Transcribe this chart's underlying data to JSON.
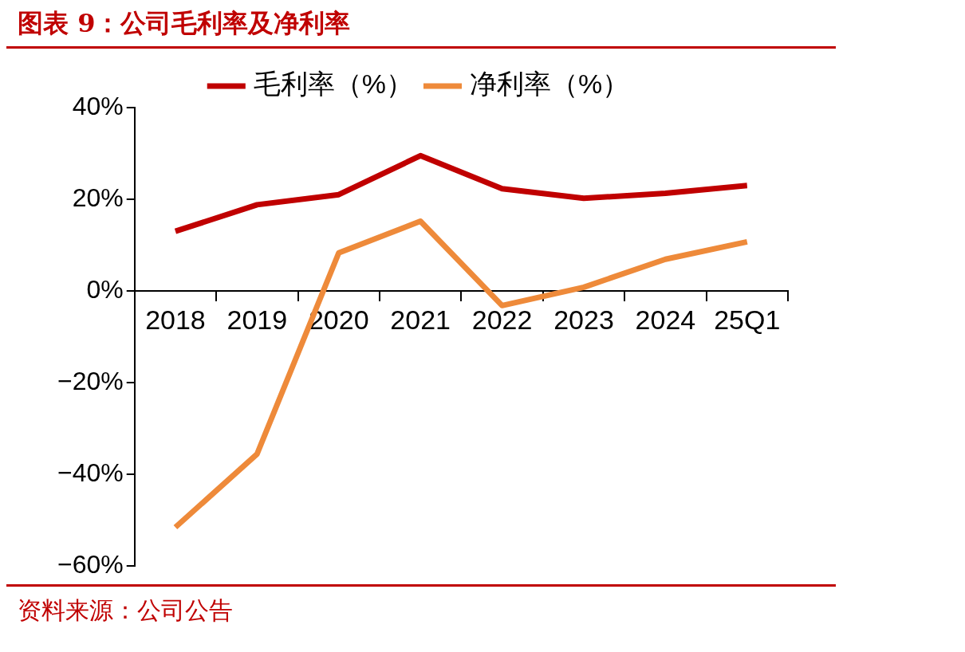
{
  "chart_data": {
    "type": "line",
    "title": "图表 9：公司毛利率及净利率",
    "categories": [
      "2018",
      "2019",
      "2020",
      "2021",
      "2022",
      "2023",
      "2024",
      "25Q1"
    ],
    "series": [
      {
        "name": "毛利率（%）",
        "color": "#c00000",
        "values": [
          13,
          18.8,
          21,
          29.5,
          22.3,
          20.2,
          21.3,
          23
        ]
      },
      {
        "name": "净利率（%）",
        "color": "#ee8a3a",
        "values": [
          -51.6,
          -35.6,
          8.3,
          15.2,
          -3.2,
          0.8,
          6.9,
          10.7
        ]
      }
    ],
    "ylim": [
      -60,
      40
    ],
    "yticks": [
      {
        "value": -60,
        "label": "−60%"
      },
      {
        "value": -40,
        "label": "−40%"
      },
      {
        "value": -20,
        "label": "−20%"
      },
      {
        "value": 0,
        "label": "0%"
      },
      {
        "value": 20,
        "label": "20%"
      },
      {
        "value": 40,
        "label": "40%"
      }
    ],
    "grid": false,
    "legend": "top",
    "marker": "none",
    "line_style": "solid",
    "annotations": [
      "资料来源：公司公告"
    ]
  }
}
